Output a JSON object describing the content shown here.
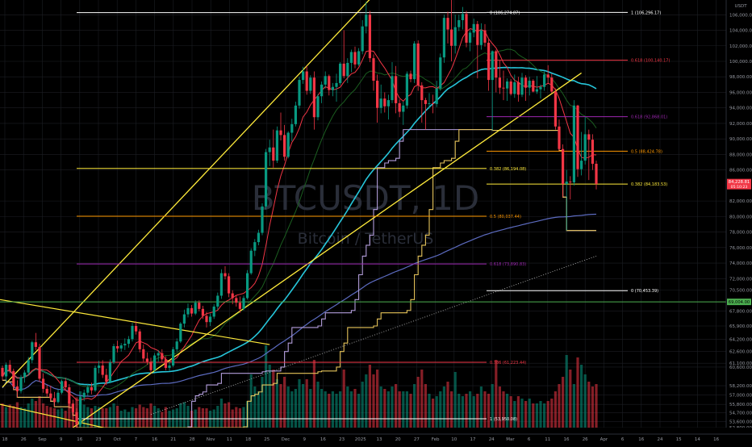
{
  "currency": "USDT",
  "watermark": {
    "symbol": "BTCUSDT, 1D",
    "name": "Bitcoin / TetherUS"
  },
  "price_badge": {
    "price": "84,228.81",
    "countdown": "05:10:23"
  },
  "level_badge": "69,004.00",
  "colors": {
    "bg": "#000000",
    "up": "#089981",
    "down": "#f23645",
    "grid": "#1c1e24",
    "fib_white": "#ffffff",
    "fib_red": "#f23645",
    "fib_purple": "#9c27b0",
    "fib_orange": "#ff9800",
    "fib_yellow": "#ffeb3b",
    "green_level": "#4caf50",
    "ma_red": "#f23645",
    "ma_green": "#1b5e20",
    "ma_teal": "#26c6da",
    "ma_blue": "#5c6bc0",
    "ma_purple": "#b39ddb",
    "ma_yellow": "#e6c45a",
    "channel": "#ffeb3b"
  },
  "chart_data": {
    "type": "candlestick",
    "title": "BTCUSDT, 1D",
    "subtitle": "Bitcoin / TetherUS",
    "ylim": [
      52800,
      107900
    ],
    "y_ticks": [
      {
        "v": 106000,
        "label": "106,000.00"
      },
      {
        "v": 104000,
        "label": "104,000.00"
      },
      {
        "v": 102000,
        "label": "102,000.00"
      },
      {
        "v": 100000,
        "label": "100,000.00"
      },
      {
        "v": 98000,
        "label": "98,000.00"
      },
      {
        "v": 96000,
        "label": "96,000.00"
      },
      {
        "v": 94000,
        "label": "94,000.00"
      },
      {
        "v": 92000,
        "label": "92,000.00"
      },
      {
        "v": 90000,
        "label": "90,000.00"
      },
      {
        "v": 88000,
        "label": "88,000.00"
      },
      {
        "v": 86000,
        "label": "86,000.00"
      },
      {
        "v": 82000,
        "label": "82,000.00"
      },
      {
        "v": 80000,
        "label": "80,000.00"
      },
      {
        "v": 78000,
        "label": "78,000.00"
      },
      {
        "v": 76000,
        "label": "76,000.00"
      },
      {
        "v": 74000,
        "label": "74,000.00"
      },
      {
        "v": 72000,
        "label": "72,000.00"
      },
      {
        "v": 70500,
        "label": "70,500.00"
      },
      {
        "v": 67800,
        "label": "67,800.00"
      },
      {
        "v": 65900,
        "label": "65,900.00"
      },
      {
        "v": 64200,
        "label": "64,200.00"
      },
      {
        "v": 62600,
        "label": "62,600.00"
      },
      {
        "v": 61100,
        "label": "61,100.00"
      },
      {
        "v": 60600,
        "label": "60,600.00"
      },
      {
        "v": 58200,
        "label": "58,200.00"
      },
      {
        "v": 57000,
        "label": "57,000.00"
      },
      {
        "v": 55800,
        "label": "55,800.00"
      },
      {
        "v": 54700,
        "label": "54,700.00"
      },
      {
        "v": 53600,
        "label": "53,600.00"
      },
      {
        "v": 52800,
        "label": "52,800.00"
      }
    ],
    "x_ticks": [
      "18",
      "26",
      "Sep",
      "9",
      "16",
      "23",
      "Oct",
      "7",
      "16",
      "21",
      "28",
      "Nov",
      "11",
      "18",
      "25",
      "Dec",
      "9",
      "16",
      "23",
      "2025",
      "13",
      "20",
      "27",
      "Feb",
      "10",
      "17",
      "24",
      "Mar",
      "6",
      "11",
      "16",
      "26",
      "Apr",
      "6",
      "16",
      "24",
      "15",
      "14",
      "16"
    ],
    "fib_levels": [
      {
        "label": "1 (106,296.17)",
        "value": 106296,
        "x_range": [
          "Dec 7",
          "Apr 1"
        ],
        "color": "white"
      },
      {
        "label": "0 (106,274.87)",
        "value": 106275,
        "x_range": [
          "Aug 20",
          "Jan 20"
        ],
        "color": "white"
      },
      {
        "label": "0.618 (100,140.17)",
        "value": 100140,
        "x_range": [
          "Feb 1",
          "Apr 1"
        ],
        "color": "red"
      },
      {
        "label": "0.618 (92,868.01)",
        "value": 92868,
        "x_range": [
          "Feb 1",
          "Apr 1"
        ],
        "color": "purple"
      },
      {
        "label": "0.5 (88,424.78)",
        "value": 88425,
        "x_range": [
          "Feb 1",
          "Apr 1"
        ],
        "color": "orange"
      },
      {
        "label": "0.382 (86,194.08)",
        "value": 86194,
        "x_range": [
          "Aug 20",
          "Jan 20"
        ],
        "color": "yellow"
      },
      {
        "label": "0.382 (84,183.53)",
        "value": 84184,
        "x_range": [
          "Feb 1",
          "Apr 1"
        ],
        "color": "yellow"
      },
      {
        "label": "0.5 (80,037.44)",
        "value": 80037,
        "x_range": [
          "Aug 20",
          "Jan 20"
        ],
        "color": "orange"
      },
      {
        "label": "0.618 (73,890.83)",
        "value": 73891,
        "x_range": [
          "Aug 20",
          "Jan 20"
        ],
        "color": "purple"
      },
      {
        "label": "0 (70,453.39)",
        "value": 70453,
        "x_range": [
          "Feb 1",
          "Apr 1"
        ],
        "color": "white"
      },
      {
        "label": "0.786 (61,223.44)",
        "value": 61223,
        "x_range": [
          "Aug 20",
          "Jan 20"
        ],
        "color": "red"
      },
      {
        "label": "1 (53,950.08)",
        "value": 53950,
        "x_range": [
          "Aug 20",
          "Jan 20"
        ],
        "color": "white"
      }
    ],
    "horizontal_level": 69004,
    "candles": [
      [
        60500,
        60800,
        58900,
        59400
      ],
      [
        59400,
        61200,
        58700,
        60900
      ],
      [
        60900,
        61500,
        59800,
        60100
      ],
      [
        60100,
        60400,
        57700,
        58100
      ],
      [
        58100,
        58900,
        56700,
        57500
      ],
      [
        57500,
        59600,
        57200,
        59300
      ],
      [
        59300,
        60200,
        58600,
        59900
      ],
      [
        59900,
        61900,
        59500,
        61500
      ],
      [
        61500,
        64000,
        61100,
        63800
      ],
      [
        63800,
        65000,
        62800,
        63200
      ],
      [
        63200,
        63600,
        58700,
        59100
      ],
      [
        59100,
        59800,
        57300,
        57800
      ],
      [
        57800,
        58300,
        56800,
        57200
      ],
      [
        57200,
        58200,
        56200,
        56600
      ],
      [
        56600,
        57400,
        55500,
        56100
      ],
      [
        56100,
        57800,
        55900,
        57300
      ],
      [
        57300,
        59000,
        57100,
        58800
      ],
      [
        58800,
        59200,
        57600,
        58000
      ],
      [
        58000,
        58400,
        55400,
        55900
      ],
      [
        55900,
        56400,
        54400,
        54800
      ],
      [
        54800,
        55300,
        52800,
        53200
      ],
      [
        53200,
        56900,
        52900,
        56700
      ],
      [
        56700,
        57700,
        56200,
        57300
      ],
      [
        57300,
        58400,
        56900,
        58000
      ],
      [
        58000,
        58600,
        57100,
        57600
      ],
      [
        57600,
        60800,
        57400,
        60500
      ],
      [
        60500,
        61400,
        59800,
        60800
      ],
      [
        60800,
        61500,
        59200,
        59600
      ],
      [
        59600,
        60400,
        58300,
        58700
      ],
      [
        58700,
        61600,
        58500,
        61200
      ],
      [
        61200,
        63600,
        61000,
        63300
      ],
      [
        63300,
        64000,
        62500,
        63000
      ],
      [
        63000,
        63700,
        62600,
        63400
      ],
      [
        63400,
        64300,
        62800,
        63600
      ],
      [
        63600,
        64600,
        63100,
        64200
      ],
      [
        64200,
        66300,
        63900,
        65900
      ],
      [
        65900,
        66500,
        64800,
        65200
      ],
      [
        65200,
        65500,
        62500,
        62900
      ],
      [
        62900,
        63500,
        61300,
        61700
      ],
      [
        61700,
        62500,
        60900,
        61300
      ],
      [
        61300,
        61800,
        59800,
        60200
      ],
      [
        60200,
        62400,
        60000,
        62100
      ],
      [
        62100,
        62800,
        61300,
        62400
      ],
      [
        62400,
        62900,
        61300,
        61600
      ],
      [
        61600,
        62000,
        60200,
        60500
      ],
      [
        60500,
        61300,
        60100,
        60800
      ],
      [
        60800,
        63200,
        60600,
        62900
      ],
      [
        62900,
        64300,
        62600,
        63900
      ],
      [
        63900,
        66400,
        63700,
        66200
      ],
      [
        66200,
        68000,
        65700,
        67400
      ],
      [
        67400,
        68800,
        67000,
        68200
      ],
      [
        68200,
        68600,
        67100,
        67500
      ],
      [
        67500,
        69200,
        67300,
        68900
      ],
      [
        68900,
        69200,
        67800,
        68100
      ],
      [
        68100,
        68500,
        66800,
        67200
      ],
      [
        67200,
        67700,
        65700,
        66400
      ],
      [
        66400,
        67500,
        65900,
        67100
      ],
      [
        67100,
        68700,
        66800,
        68400
      ],
      [
        68400,
        70200,
        68000,
        69800
      ],
      [
        69800,
        73200,
        69400,
        72700
      ],
      [
        72700,
        73600,
        71900,
        72300
      ],
      [
        72300,
        72700,
        69600,
        70100
      ],
      [
        70100,
        70500,
        68700,
        69500
      ],
      [
        69500,
        69900,
        68400,
        68900
      ],
      [
        68900,
        69700,
        67600,
        68100
      ],
      [
        68100,
        69800,
        67900,
        69500
      ],
      [
        69500,
        73100,
        69300,
        72700
      ],
      [
        72700,
        75900,
        72500,
        75600
      ],
      [
        75600,
        77100,
        74900,
        76700
      ],
      [
        76700,
        78300,
        76300,
        77900
      ],
      [
        77900,
        81700,
        77600,
        81300
      ],
      [
        81300,
        88700,
        80900,
        88300
      ],
      [
        88300,
        89900,
        86500,
        88900
      ],
      [
        88900,
        91200,
        86300,
        87200
      ],
      [
        87200,
        91600,
        86900,
        91100
      ],
      [
        91100,
        93400,
        89800,
        90500
      ],
      [
        90500,
        91800,
        87200,
        87700
      ],
      [
        87700,
        91000,
        87500,
        90800
      ],
      [
        90800,
        92600,
        89700,
        91900
      ],
      [
        91900,
        94800,
        91600,
        94300
      ],
      [
        94300,
        98000,
        93900,
        97600
      ],
      [
        97600,
        99300,
        97100,
        98700
      ],
      [
        98700,
        99400,
        95700,
        96200
      ],
      [
        96200,
        98200,
        95800,
        97900
      ],
      [
        97900,
        98700,
        91200,
        92800
      ],
      [
        92800,
        95800,
        92400,
        95500
      ],
      [
        95500,
        97400,
        94600,
        97000
      ],
      [
        97000,
        98700,
        96500,
        98100
      ],
      [
        98100,
        98300,
        95600,
        96300
      ],
      [
        96300,
        97200,
        95500,
        96700
      ],
      [
        96700,
        98400,
        94800,
        97200
      ],
      [
        97200,
        99900,
        96900,
        99700
      ],
      [
        99700,
        104000,
        97800,
        98100
      ],
      [
        98100,
        100400,
        97200,
        99800
      ],
      [
        99800,
        101500,
        98600,
        101200
      ],
      [
        101200,
        101900,
        99100,
        99600
      ],
      [
        99600,
        101700,
        99400,
        101300
      ],
      [
        101300,
        105300,
        100900,
        104500
      ],
      [
        104500,
        107700,
        103600,
        106000
      ],
      [
        106000,
        106500,
        99900,
        100400
      ],
      [
        100400,
        100900,
        96200,
        97500
      ],
      [
        97500,
        98300,
        92100,
        94000
      ],
      [
        94000,
        97000,
        93300,
        95200
      ],
      [
        95200,
        96000,
        93400,
        94200
      ],
      [
        94200,
        95700,
        92500,
        95000
      ],
      [
        95000,
        99900,
        94600,
        98100
      ],
      [
        98100,
        99400,
        93300,
        94600
      ],
      [
        94600,
        95100,
        92800,
        93500
      ],
      [
        93500,
        94800,
        91800,
        94300
      ],
      [
        94300,
        98700,
        93900,
        98400
      ],
      [
        98400,
        98800,
        97300,
        97700
      ],
      [
        97700,
        102600,
        97200,
        102300
      ],
      [
        102300,
        102700,
        96200,
        96900
      ],
      [
        96900,
        97300,
        92100,
        95000
      ],
      [
        95000,
        95300,
        91200,
        94500
      ],
      [
        94500,
        95900,
        93900,
        94600
      ],
      [
        94600,
        95700,
        93300,
        94500
      ],
      [
        94500,
        97500,
        94100,
        96500
      ],
      [
        96500,
        101000,
        96200,
        100500
      ],
      [
        100500,
        106000,
        99800,
        105600
      ],
      [
        105600,
        106400,
        102300,
        104100
      ],
      [
        104100,
        109600,
        100000,
        102000
      ],
      [
        102000,
        106000,
        101000,
        104400
      ],
      [
        104400,
        106000,
        103900,
        105300
      ],
      [
        105300,
        107000,
        104100,
        106100
      ],
      [
        106100,
        106500,
        101800,
        102400
      ],
      [
        102400,
        104000,
        101300,
        103700
      ],
      [
        103700,
        105500,
        103100,
        104800
      ],
      [
        104800,
        105200,
        97800,
        102100
      ],
      [
        102100,
        104900,
        101500,
        104000
      ],
      [
        104000,
        104800,
        101900,
        102400
      ],
      [
        102400,
        102800,
        96200,
        97600
      ],
      [
        97600,
        101400,
        91100,
        101300
      ],
      [
        101300,
        101500,
        96000,
        97900
      ],
      [
        97900,
        100100,
        95800,
        96600
      ],
      [
        96600,
        98800,
        95000,
        96500
      ],
      [
        96500,
        97800,
        94900,
        97400
      ],
      [
        97400,
        97700,
        95600,
        95800
      ],
      [
        95800,
        98300,
        95300,
        97300
      ],
      [
        97300,
        98000,
        94800,
        95700
      ],
      [
        95700,
        98500,
        95400,
        97900
      ],
      [
        97900,
        98200,
        94900,
        96600
      ],
      [
        96600,
        98000,
        95600,
        97500
      ],
      [
        97500,
        97700,
        96000,
        96100
      ],
      [
        96100,
        98100,
        95800,
        96400
      ],
      [
        96400,
        97000,
        95200,
        96700
      ],
      [
        96700,
        98700,
        96200,
        98300
      ],
      [
        98300,
        99500,
        97100,
        97900
      ],
      [
        97900,
        98400,
        95900,
        96100
      ],
      [
        96100,
        96500,
        91200,
        91600
      ],
      [
        91600,
        92500,
        88500,
        88700
      ],
      [
        88700,
        89300,
        82500,
        84200
      ],
      [
        84200,
        86000,
        78200,
        84500
      ],
      [
        84500,
        85200,
        82200,
        84400
      ],
      [
        84400,
        95000,
        84000,
        94300
      ],
      [
        94300,
        94400,
        85100,
        86100
      ],
      [
        86100,
        90900,
        85300,
        87200
      ],
      [
        87200,
        92800,
        86700,
        90600
      ],
      [
        90600,
        91200,
        84700,
        89900
      ],
      [
        89900,
        90600,
        86000,
        86800
      ],
      [
        86800,
        87200,
        83500,
        84200
      ]
    ],
    "volumes": [
      0.2,
      0.17,
      0.19,
      0.18,
      0.21,
      0.17,
      0.16,
      0.2,
      0.24,
      0.22,
      0.26,
      0.2,
      0.18,
      0.17,
      0.16,
      0.15,
      0.16,
      0.14,
      0.22,
      0.19,
      0.25,
      0.3,
      0.19,
      0.17,
      0.16,
      0.18,
      0.17,
      0.16,
      0.16,
      0.17,
      0.2,
      0.18,
      0.14,
      0.15,
      0.13,
      0.17,
      0.16,
      0.19,
      0.17,
      0.16,
      0.2,
      0.18,
      0.16,
      0.13,
      0.17,
      0.14,
      0.15,
      0.16,
      0.2,
      0.21,
      0.18,
      0.14,
      0.15,
      0.17,
      0.16,
      0.16,
      0.14,
      0.15,
      0.18,
      0.24,
      0.2,
      0.21,
      0.15,
      0.17,
      0.16,
      0.17,
      0.22,
      0.44,
      0.34,
      0.3,
      0.42,
      0.68,
      0.52,
      0.48,
      0.4,
      0.36,
      0.42,
      0.34,
      0.3,
      0.32,
      0.4,
      0.36,
      0.4,
      0.32,
      0.56,
      0.38,
      0.32,
      0.3,
      0.28,
      0.3,
      0.28,
      0.3,
      0.48,
      0.34,
      0.3,
      0.32,
      0.28,
      0.38,
      0.44,
      0.52,
      0.44,
      0.48,
      0.34,
      0.32,
      0.3,
      0.34,
      0.36,
      0.3,
      0.3,
      0.3,
      0.28,
      0.36,
      0.42,
      0.48,
      0.36,
      0.28,
      0.24,
      0.26,
      0.3,
      0.34,
      0.38,
      0.3,
      0.46,
      0.28,
      0.26,
      0.28,
      0.3,
      0.26,
      0.28,
      0.34,
      0.3,
      0.28,
      0.36,
      0.56,
      0.34,
      0.3,
      0.28,
      0.26,
      0.22,
      0.26,
      0.24,
      0.22,
      0.24,
      0.2,
      0.2,
      0.22,
      0.2,
      0.22,
      0.24,
      0.3,
      0.36,
      0.42,
      0.6,
      0.48,
      0.36,
      0.58,
      0.52,
      0.44,
      0.38,
      0.34,
      0.36,
      0.4
    ]
  }
}
